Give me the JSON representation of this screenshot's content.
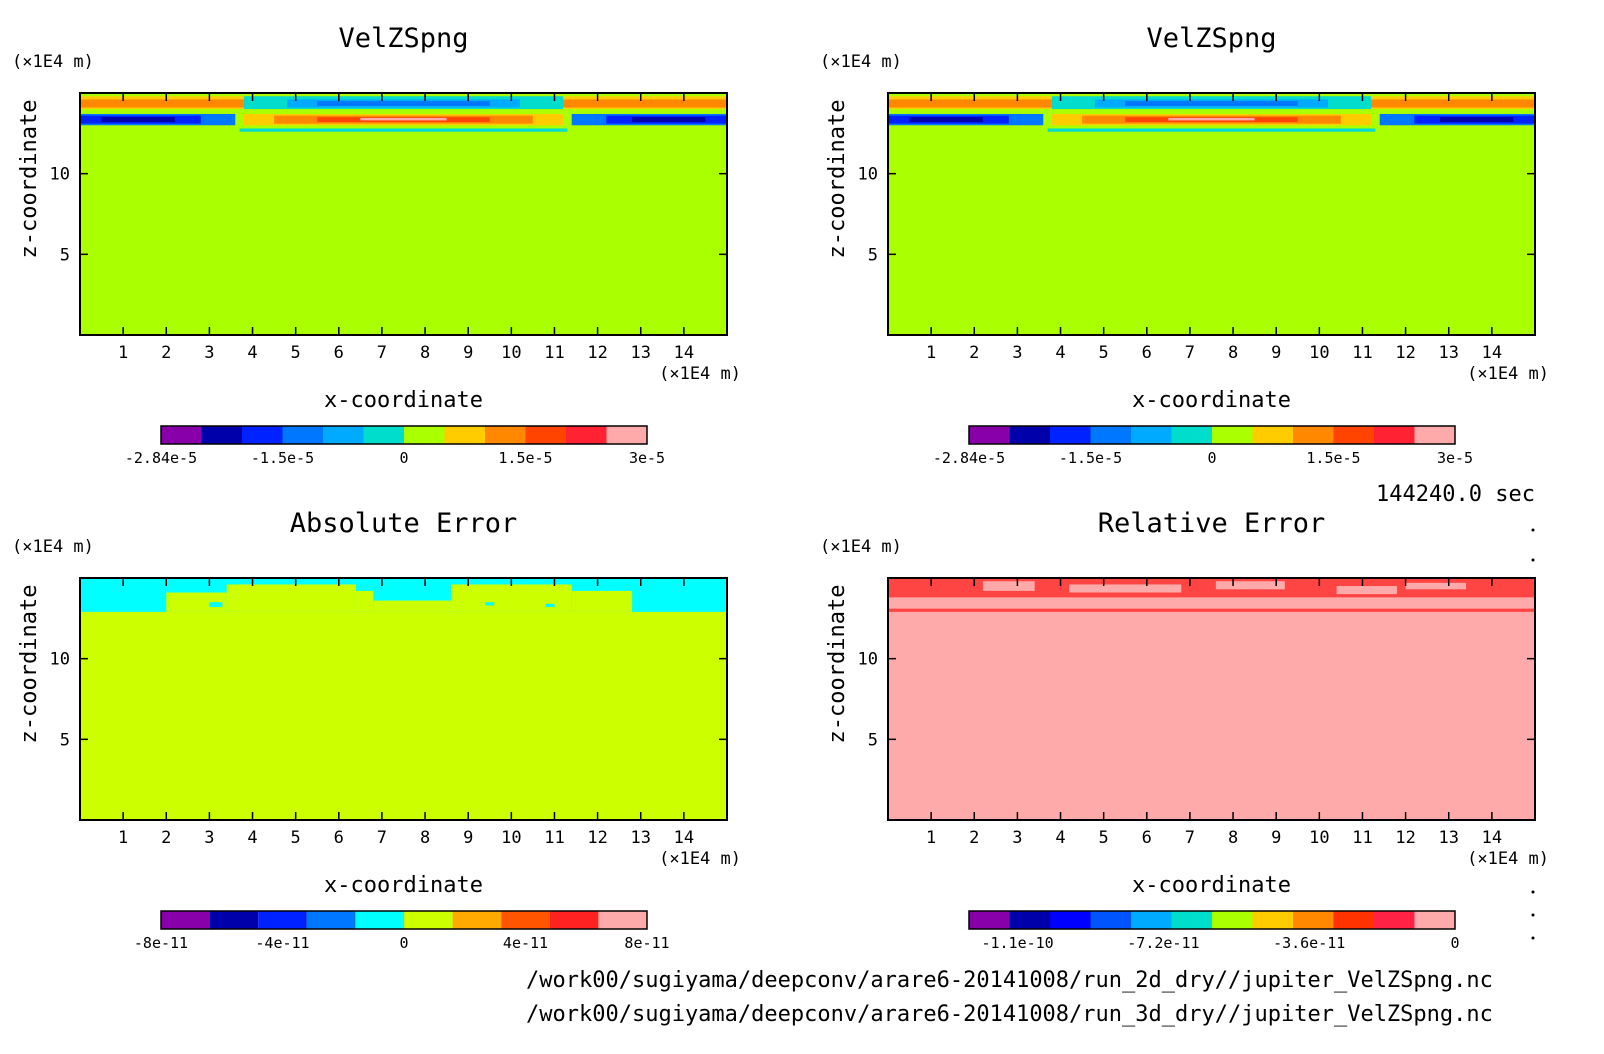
{
  "time_label": "144240.0 sec",
  "file_paths": [
    "/work00/sugiyama/deepconv/arare6-20141008/run_2d_dry//jupiter_VelZSpng.nc",
    "/work00/sugiyama/deepconv/arare6-20141008/run_3d_dry//jupiter_VelZSpng.nc"
  ],
  "chart_data": [
    {
      "type": "heatmap",
      "title": "VelZSpng",
      "xlabel": "x-coordinate",
      "ylabel": "z-coordinate",
      "x_unit": "(×1E4 m)",
      "y_unit": "(×1E4 m)",
      "xlim": [
        0,
        15
      ],
      "ylim": [
        0,
        15
      ],
      "x_ticks": [
        1,
        2,
        3,
        4,
        5,
        6,
        7,
        8,
        9,
        10,
        11,
        12,
        13,
        14
      ],
      "y_ticks": [
        5,
        10
      ],
      "background_color": "#aaff00",
      "colorbar": {
        "colors": [
          "#8800aa",
          "#0000aa",
          "#0022ff",
          "#0077ff",
          "#00aaff",
          "#00ddcc",
          "#aaff00",
          "#ffcc00",
          "#ff8800",
          "#ff4400",
          "#ff2233",
          "#ffaaaa"
        ],
        "labels": [
          "-2.84e-5",
          "-1.5e-5",
          "0",
          "1.5e-5",
          "3e-5"
        ]
      },
      "regions": [
        {
          "x0": 0,
          "x1": 15,
          "z0": 14.0,
          "z1": 14.8,
          "color": "#ffcc00"
        },
        {
          "x0": 0,
          "x1": 3.8,
          "z0": 14.1,
          "z1": 14.6,
          "color": "#ff8800"
        },
        {
          "x0": 11.2,
          "x1": 15,
          "z0": 14.1,
          "z1": 14.6,
          "color": "#ff8800"
        },
        {
          "x0": 3.8,
          "x1": 11.2,
          "z0": 14.0,
          "z1": 14.8,
          "color": "#00ddcc"
        },
        {
          "x0": 4.8,
          "x1": 10.2,
          "z0": 14.1,
          "z1": 14.6,
          "color": "#00aaff"
        },
        {
          "x0": 5.5,
          "x1": 9.5,
          "z0": 14.2,
          "z1": 14.5,
          "color": "#0077ff"
        },
        {
          "x0": 0,
          "x1": 15,
          "z0": 13.7,
          "z1": 14.0,
          "color": "#aaff00"
        },
        {
          "x0": 0,
          "x1": 3.6,
          "z0": 13.0,
          "z1": 13.7,
          "color": "#0077ff"
        },
        {
          "x0": 0,
          "x1": 2.8,
          "z0": 13.1,
          "z1": 13.6,
          "color": "#0022ff"
        },
        {
          "x0": 0.5,
          "x1": 2.2,
          "z0": 13.2,
          "z1": 13.5,
          "color": "#0000aa"
        },
        {
          "x0": 11.4,
          "x1": 15,
          "z0": 13.0,
          "z1": 13.7,
          "color": "#0077ff"
        },
        {
          "x0": 12.2,
          "x1": 15,
          "z0": 13.1,
          "z1": 13.6,
          "color": "#0022ff"
        },
        {
          "x0": 12.8,
          "x1": 14.5,
          "z0": 13.2,
          "z1": 13.5,
          "color": "#0000aa"
        },
        {
          "x0": 3.8,
          "x1": 11.2,
          "z0": 13.0,
          "z1": 13.7,
          "color": "#ffcc00"
        },
        {
          "x0": 4.5,
          "x1": 10.5,
          "z0": 13.1,
          "z1": 13.6,
          "color": "#ff8800"
        },
        {
          "x0": 5.5,
          "x1": 9.5,
          "z0": 13.2,
          "z1": 13.5,
          "color": "#ff4400"
        },
        {
          "x0": 6.5,
          "x1": 8.5,
          "z0": 13.3,
          "z1": 13.45,
          "color": "#ffaaaa"
        },
        {
          "x0": 3.7,
          "x1": 11.3,
          "z0": 12.6,
          "z1": 12.8,
          "color": "#00ddcc"
        }
      ]
    },
    {
      "type": "heatmap",
      "title": "VelZSpng",
      "xlabel": "x-coordinate",
      "ylabel": "z-coordinate",
      "x_unit": "(×1E4 m)",
      "y_unit": "(×1E4 m)",
      "xlim": [
        0,
        15
      ],
      "ylim": [
        0,
        15
      ],
      "x_ticks": [
        1,
        2,
        3,
        4,
        5,
        6,
        7,
        8,
        9,
        10,
        11,
        12,
        13,
        14
      ],
      "y_ticks": [
        5,
        10
      ],
      "background_color": "#aaff00",
      "colorbar": {
        "colors": [
          "#8800aa",
          "#0000aa",
          "#0022ff",
          "#0077ff",
          "#00aaff",
          "#00ddcc",
          "#aaff00",
          "#ffcc00",
          "#ff8800",
          "#ff4400",
          "#ff2233",
          "#ffaaaa"
        ],
        "labels": [
          "-2.84e-5",
          "-1.5e-5",
          "0",
          "1.5e-5",
          "3e-5"
        ]
      },
      "regions": [
        {
          "x0": 0,
          "x1": 15,
          "z0": 14.0,
          "z1": 14.8,
          "color": "#ffcc00"
        },
        {
          "x0": 0,
          "x1": 3.8,
          "z0": 14.1,
          "z1": 14.6,
          "color": "#ff8800"
        },
        {
          "x0": 11.2,
          "x1": 15,
          "z0": 14.1,
          "z1": 14.6,
          "color": "#ff8800"
        },
        {
          "x0": 3.8,
          "x1": 11.2,
          "z0": 14.0,
          "z1": 14.8,
          "color": "#00ddcc"
        },
        {
          "x0": 4.8,
          "x1": 10.2,
          "z0": 14.1,
          "z1": 14.6,
          "color": "#00aaff"
        },
        {
          "x0": 5.5,
          "x1": 9.5,
          "z0": 14.2,
          "z1": 14.5,
          "color": "#0077ff"
        },
        {
          "x0": 0,
          "x1": 15,
          "z0": 13.7,
          "z1": 14.0,
          "color": "#aaff00"
        },
        {
          "x0": 0,
          "x1": 3.6,
          "z0": 13.0,
          "z1": 13.7,
          "color": "#0077ff"
        },
        {
          "x0": 0,
          "x1": 2.8,
          "z0": 13.1,
          "z1": 13.6,
          "color": "#0022ff"
        },
        {
          "x0": 0.5,
          "x1": 2.2,
          "z0": 13.2,
          "z1": 13.5,
          "color": "#0000aa"
        },
        {
          "x0": 11.4,
          "x1": 15,
          "z0": 13.0,
          "z1": 13.7,
          "color": "#0077ff"
        },
        {
          "x0": 12.2,
          "x1": 15,
          "z0": 13.1,
          "z1": 13.6,
          "color": "#0022ff"
        },
        {
          "x0": 12.8,
          "x1": 14.5,
          "z0": 13.2,
          "z1": 13.5,
          "color": "#0000aa"
        },
        {
          "x0": 3.8,
          "x1": 11.2,
          "z0": 13.0,
          "z1": 13.7,
          "color": "#ffcc00"
        },
        {
          "x0": 4.5,
          "x1": 10.5,
          "z0": 13.1,
          "z1": 13.6,
          "color": "#ff8800"
        },
        {
          "x0": 5.5,
          "x1": 9.5,
          "z0": 13.2,
          "z1": 13.5,
          "color": "#ff4400"
        },
        {
          "x0": 6.5,
          "x1": 8.5,
          "z0": 13.3,
          "z1": 13.45,
          "color": "#ffaaaa"
        },
        {
          "x0": 3.7,
          "x1": 11.3,
          "z0": 12.6,
          "z1": 12.8,
          "color": "#00ddcc"
        }
      ]
    },
    {
      "type": "heatmap",
      "title": "Absolute Error",
      "xlabel": "x-coordinate",
      "ylabel": "z-coordinate",
      "x_unit": "(×1E4 m)",
      "y_unit": "(×1E4 m)",
      "xlim": [
        0,
        15
      ],
      "ylim": [
        0,
        15
      ],
      "x_ticks": [
        1,
        2,
        3,
        4,
        5,
        6,
        7,
        8,
        9,
        10,
        11,
        12,
        13,
        14
      ],
      "y_ticks": [
        5,
        10
      ],
      "background_color": "#ccff00",
      "colorbar": {
        "colors": [
          "#8800aa",
          "#0000aa",
          "#0022ff",
          "#0077ff",
          "#00ffff",
          "#ccff00",
          "#ffaa00",
          "#ff5500",
          "#ff2222",
          "#ffaaaa"
        ],
        "labels": [
          "-8e-11",
          "-4e-11",
          "0",
          "4e-11",
          "8e-11"
        ]
      },
      "regions": [
        {
          "x0": 0,
          "x1": 15,
          "z0": 12.9,
          "z1": 15,
          "color": "#00ffff"
        },
        {
          "x0": 2.0,
          "x1": 3.4,
          "z0": 12.9,
          "z1": 14.1,
          "color": "#ccff00"
        },
        {
          "x0": 3.4,
          "x1": 6.4,
          "z0": 12.9,
          "z1": 14.6,
          "color": "#ccff00"
        },
        {
          "x0": 6.4,
          "x1": 6.8,
          "z0": 12.9,
          "z1": 14.2,
          "color": "#ccff00"
        },
        {
          "x0": 8.6,
          "x1": 11.4,
          "z0": 12.9,
          "z1": 14.6,
          "color": "#ccff00"
        },
        {
          "x0": 11.4,
          "x1": 12.8,
          "z0": 12.9,
          "z1": 14.2,
          "color": "#ccff00"
        },
        {
          "x0": 6.8,
          "x1": 8.6,
          "z0": 12.9,
          "z1": 13.6,
          "color": "#ccff00"
        },
        {
          "x0": 3.0,
          "x1": 3.3,
          "z0": 13.2,
          "z1": 13.5,
          "color": "#00ffff"
        },
        {
          "x0": 9.4,
          "x1": 9.6,
          "z0": 13.3,
          "z1": 13.5,
          "color": "#00ffff"
        },
        {
          "x0": 10.8,
          "x1": 11.0,
          "z0": 13.2,
          "z1": 13.4,
          "color": "#00ffff"
        }
      ]
    },
    {
      "type": "heatmap",
      "title": "Relative Error",
      "xlabel": "x-coordinate",
      "ylabel": "z-coordinate",
      "x_unit": "(×1E4 m)",
      "y_unit": "(×1E4 m)",
      "xlim": [
        0,
        15
      ],
      "ylim": [
        0,
        15
      ],
      "x_ticks": [
        1,
        2,
        3,
        4,
        5,
        6,
        7,
        8,
        9,
        10,
        11,
        12,
        13,
        14
      ],
      "y_ticks": [
        5,
        10
      ],
      "background_color": "#ffaaaa",
      "colorbar": {
        "colors": [
          "#8800aa",
          "#0000aa",
          "#0000ff",
          "#0055ff",
          "#00aaff",
          "#00ddcc",
          "#aaff00",
          "#ffcc00",
          "#ff8800",
          "#ff3300",
          "#ff2244",
          "#ffaaaa"
        ],
        "labels": [
          "-1.1e-10",
          "-7.2e-11",
          "-3.6e-11",
          "0"
        ]
      },
      "regions": [
        {
          "x0": 0,
          "x1": 15,
          "z0": 13.8,
          "z1": 15,
          "color": "#ff4444"
        },
        {
          "x0": 2.2,
          "x1": 3.4,
          "z0": 14.2,
          "z1": 14.8,
          "color": "#ffaaaa"
        },
        {
          "x0": 4.2,
          "x1": 6.8,
          "z0": 14.1,
          "z1": 14.6,
          "color": "#ffaaaa"
        },
        {
          "x0": 7.6,
          "x1": 9.2,
          "z0": 14.3,
          "z1": 14.8,
          "color": "#ffaaaa"
        },
        {
          "x0": 10.4,
          "x1": 11.8,
          "z0": 14.0,
          "z1": 14.5,
          "color": "#ffaaaa"
        },
        {
          "x0": 12.0,
          "x1": 13.4,
          "z0": 14.3,
          "z1": 14.7,
          "color": "#ffaaaa"
        },
        {
          "x0": 0,
          "x1": 15,
          "z0": 12.9,
          "z1": 13.1,
          "color": "#ff4444"
        }
      ]
    }
  ]
}
